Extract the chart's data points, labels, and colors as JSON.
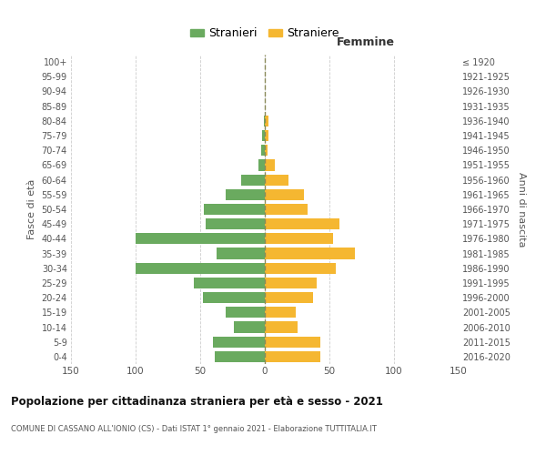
{
  "age_groups": [
    "0-4",
    "5-9",
    "10-14",
    "15-19",
    "20-24",
    "25-29",
    "30-34",
    "35-39",
    "40-44",
    "45-49",
    "50-54",
    "55-59",
    "60-64",
    "65-69",
    "70-74",
    "75-79",
    "80-84",
    "85-89",
    "90-94",
    "95-99",
    "100+"
  ],
  "birth_years": [
    "2016-2020",
    "2011-2015",
    "2006-2010",
    "2001-2005",
    "1996-2000",
    "1991-1995",
    "1986-1990",
    "1981-1985",
    "1976-1980",
    "1971-1975",
    "1966-1970",
    "1961-1965",
    "1956-1960",
    "1951-1955",
    "1946-1950",
    "1941-1945",
    "1936-1940",
    "1931-1935",
    "1926-1930",
    "1921-1925",
    "≤ 1920"
  ],
  "males": [
    39,
    40,
    24,
    30,
    48,
    55,
    100,
    37,
    100,
    46,
    47,
    30,
    18,
    5,
    3,
    2,
    1,
    0,
    0,
    0,
    0
  ],
  "females": [
    43,
    43,
    25,
    24,
    37,
    40,
    55,
    70,
    53,
    58,
    33,
    30,
    18,
    8,
    2,
    3,
    3,
    0,
    0,
    0,
    0
  ],
  "male_color": "#6aaa5f",
  "female_color": "#f5b731",
  "grid_color": "#cccccc",
  "center_line_color": "#8a8a5a",
  "title": "Popolazione per cittadinanza straniera per età e sesso - 2021",
  "subtitle": "COMUNE DI CASSANO ALL'IONIO (CS) - Dati ISTAT 1° gennaio 2021 - Elaborazione TUTTITALIA.IT",
  "xlabel_right": "Femmine",
  "ylabel_left": "Fasce di età",
  "ylabel_right": "Anni di nascita",
  "legend_male": "Stranieri",
  "legend_female": "Straniere",
  "xlim": 150,
  "bg_color": "#ffffff"
}
